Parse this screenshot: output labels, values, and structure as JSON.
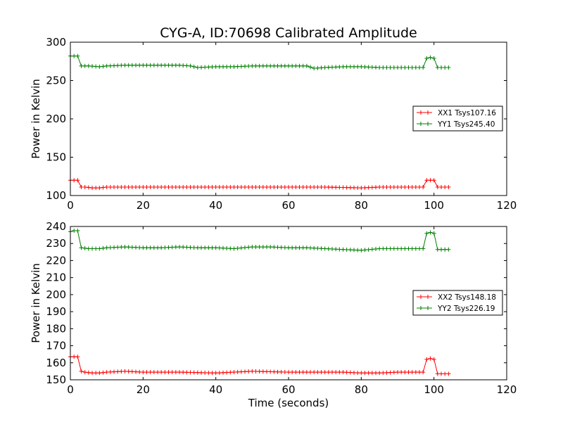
{
  "title": "CYG-A, ID:70698 Calibrated Amplitude",
  "chart_data": [
    {
      "type": "line",
      "title": "CYG-A, ID:70698 Calibrated Amplitude",
      "xlabel": "",
      "ylabel": "Power in Kelvin",
      "xlim": [
        0,
        120
      ],
      "ylim": [
        100,
        300
      ],
      "xticks": [
        0,
        20,
        40,
        60,
        80,
        100,
        120
      ],
      "yticks": [
        100,
        150,
        200,
        250,
        300
      ],
      "legend_position": "center-right",
      "grid": false,
      "series": [
        {
          "name": "XX1 Tsys107.16",
          "color": "#ff0000",
          "marker": "+",
          "points": [
            [
              0,
              120
            ],
            [
              1,
              120
            ],
            [
              2,
              120
            ],
            [
              3,
              111
            ],
            [
              4,
              111
            ],
            [
              6,
              110
            ],
            [
              8,
              110
            ],
            [
              10,
              111
            ],
            [
              20,
              111
            ],
            [
              30,
              111
            ],
            [
              40,
              111
            ],
            [
              50,
              111
            ],
            [
              60,
              111
            ],
            [
              70,
              111
            ],
            [
              80,
              110
            ],
            [
              85,
              111
            ],
            [
              96,
              111
            ],
            [
              97,
              111
            ],
            [
              98,
              120
            ],
            [
              99,
              120
            ],
            [
              100,
              120
            ],
            [
              101,
              111
            ],
            [
              103,
              111
            ],
            [
              104,
              111
            ]
          ]
        },
        {
          "name": "YY1 Tsys245.40",
          "color": "#008000",
          "marker": "+",
          "points": [
            [
              0,
              282
            ],
            [
              1,
              282
            ],
            [
              2,
              282
            ],
            [
              3,
              269
            ],
            [
              5,
              269
            ],
            [
              8,
              268
            ],
            [
              10,
              269
            ],
            [
              15,
              270
            ],
            [
              20,
              270
            ],
            [
              25,
              270
            ],
            [
              30,
              270
            ],
            [
              33,
              269
            ],
            [
              35,
              267
            ],
            [
              40,
              268
            ],
            [
              45,
              268
            ],
            [
              50,
              269
            ],
            [
              55,
              269
            ],
            [
              60,
              269
            ],
            [
              65,
              269
            ],
            [
              67,
              266
            ],
            [
              70,
              267
            ],
            [
              75,
              268
            ],
            [
              80,
              268
            ],
            [
              85,
              267
            ],
            [
              90,
              267
            ],
            [
              96,
              267
            ],
            [
              97,
              267
            ],
            [
              98,
              279
            ],
            [
              99,
              280
            ],
            [
              100,
              279
            ],
            [
              101,
              267
            ],
            [
              103,
              267
            ],
            [
              104,
              267
            ]
          ]
        }
      ]
    },
    {
      "type": "line",
      "title": "",
      "xlabel": "Time (seconds)",
      "ylabel": "Power in Kelvin",
      "xlim": [
        0,
        120
      ],
      "ylim": [
        150,
        240
      ],
      "xticks": [
        0,
        20,
        40,
        60,
        80,
        100,
        120
      ],
      "yticks": [
        150,
        160,
        170,
        180,
        190,
        200,
        210,
        220,
        230,
        240
      ],
      "legend_position": "center-right",
      "grid": false,
      "series": [
        {
          "name": "XX2 Tsys148.18",
          "color": "#ff0000",
          "marker": "+",
          "points": [
            [
              0,
              163.5
            ],
            [
              1,
              163.5
            ],
            [
              2,
              163.5
            ],
            [
              3,
              155
            ],
            [
              4,
              154.5
            ],
            [
              6,
              154
            ],
            [
              8,
              154
            ],
            [
              10,
              154.5
            ],
            [
              15,
              155
            ],
            [
              20,
              154.5
            ],
            [
              30,
              154.5
            ],
            [
              40,
              154
            ],
            [
              50,
              155
            ],
            [
              60,
              154.5
            ],
            [
              70,
              154.5
            ],
            [
              75,
              154.5
            ],
            [
              80,
              154
            ],
            [
              85,
              154
            ],
            [
              90,
              154.5
            ],
            [
              96,
              154.5
            ],
            [
              97,
              154.5
            ],
            [
              98,
              162
            ],
            [
              99,
              162.5
            ],
            [
              100,
              162
            ],
            [
              101,
              153.5
            ],
            [
              103,
              153.5
            ],
            [
              104,
              153.5
            ]
          ]
        },
        {
          "name": "YY2 Tsys226.19",
          "color": "#008000",
          "marker": "+",
          "points": [
            [
              0,
              237
            ],
            [
              1,
              237.5
            ],
            [
              2,
              237.5
            ],
            [
              3,
              227.5
            ],
            [
              5,
              227
            ],
            [
              8,
              227
            ],
            [
              10,
              227.5
            ],
            [
              15,
              228
            ],
            [
              20,
              227.5
            ],
            [
              25,
              227.5
            ],
            [
              30,
              228
            ],
            [
              35,
              227.5
            ],
            [
              40,
              227.5
            ],
            [
              45,
              227
            ],
            [
              50,
              228
            ],
            [
              55,
              228
            ],
            [
              60,
              227.5
            ],
            [
              65,
              227.5
            ],
            [
              70,
              227
            ],
            [
              75,
              226.5
            ],
            [
              80,
              226
            ],
            [
              85,
              227
            ],
            [
              90,
              227
            ],
            [
              96,
              227
            ],
            [
              97,
              227
            ],
            [
              98,
              236
            ],
            [
              99,
              236.5
            ],
            [
              100,
              236
            ],
            [
              101,
              226.5
            ],
            [
              103,
              226.5
            ],
            [
              104,
              226.5
            ]
          ]
        }
      ]
    }
  ]
}
